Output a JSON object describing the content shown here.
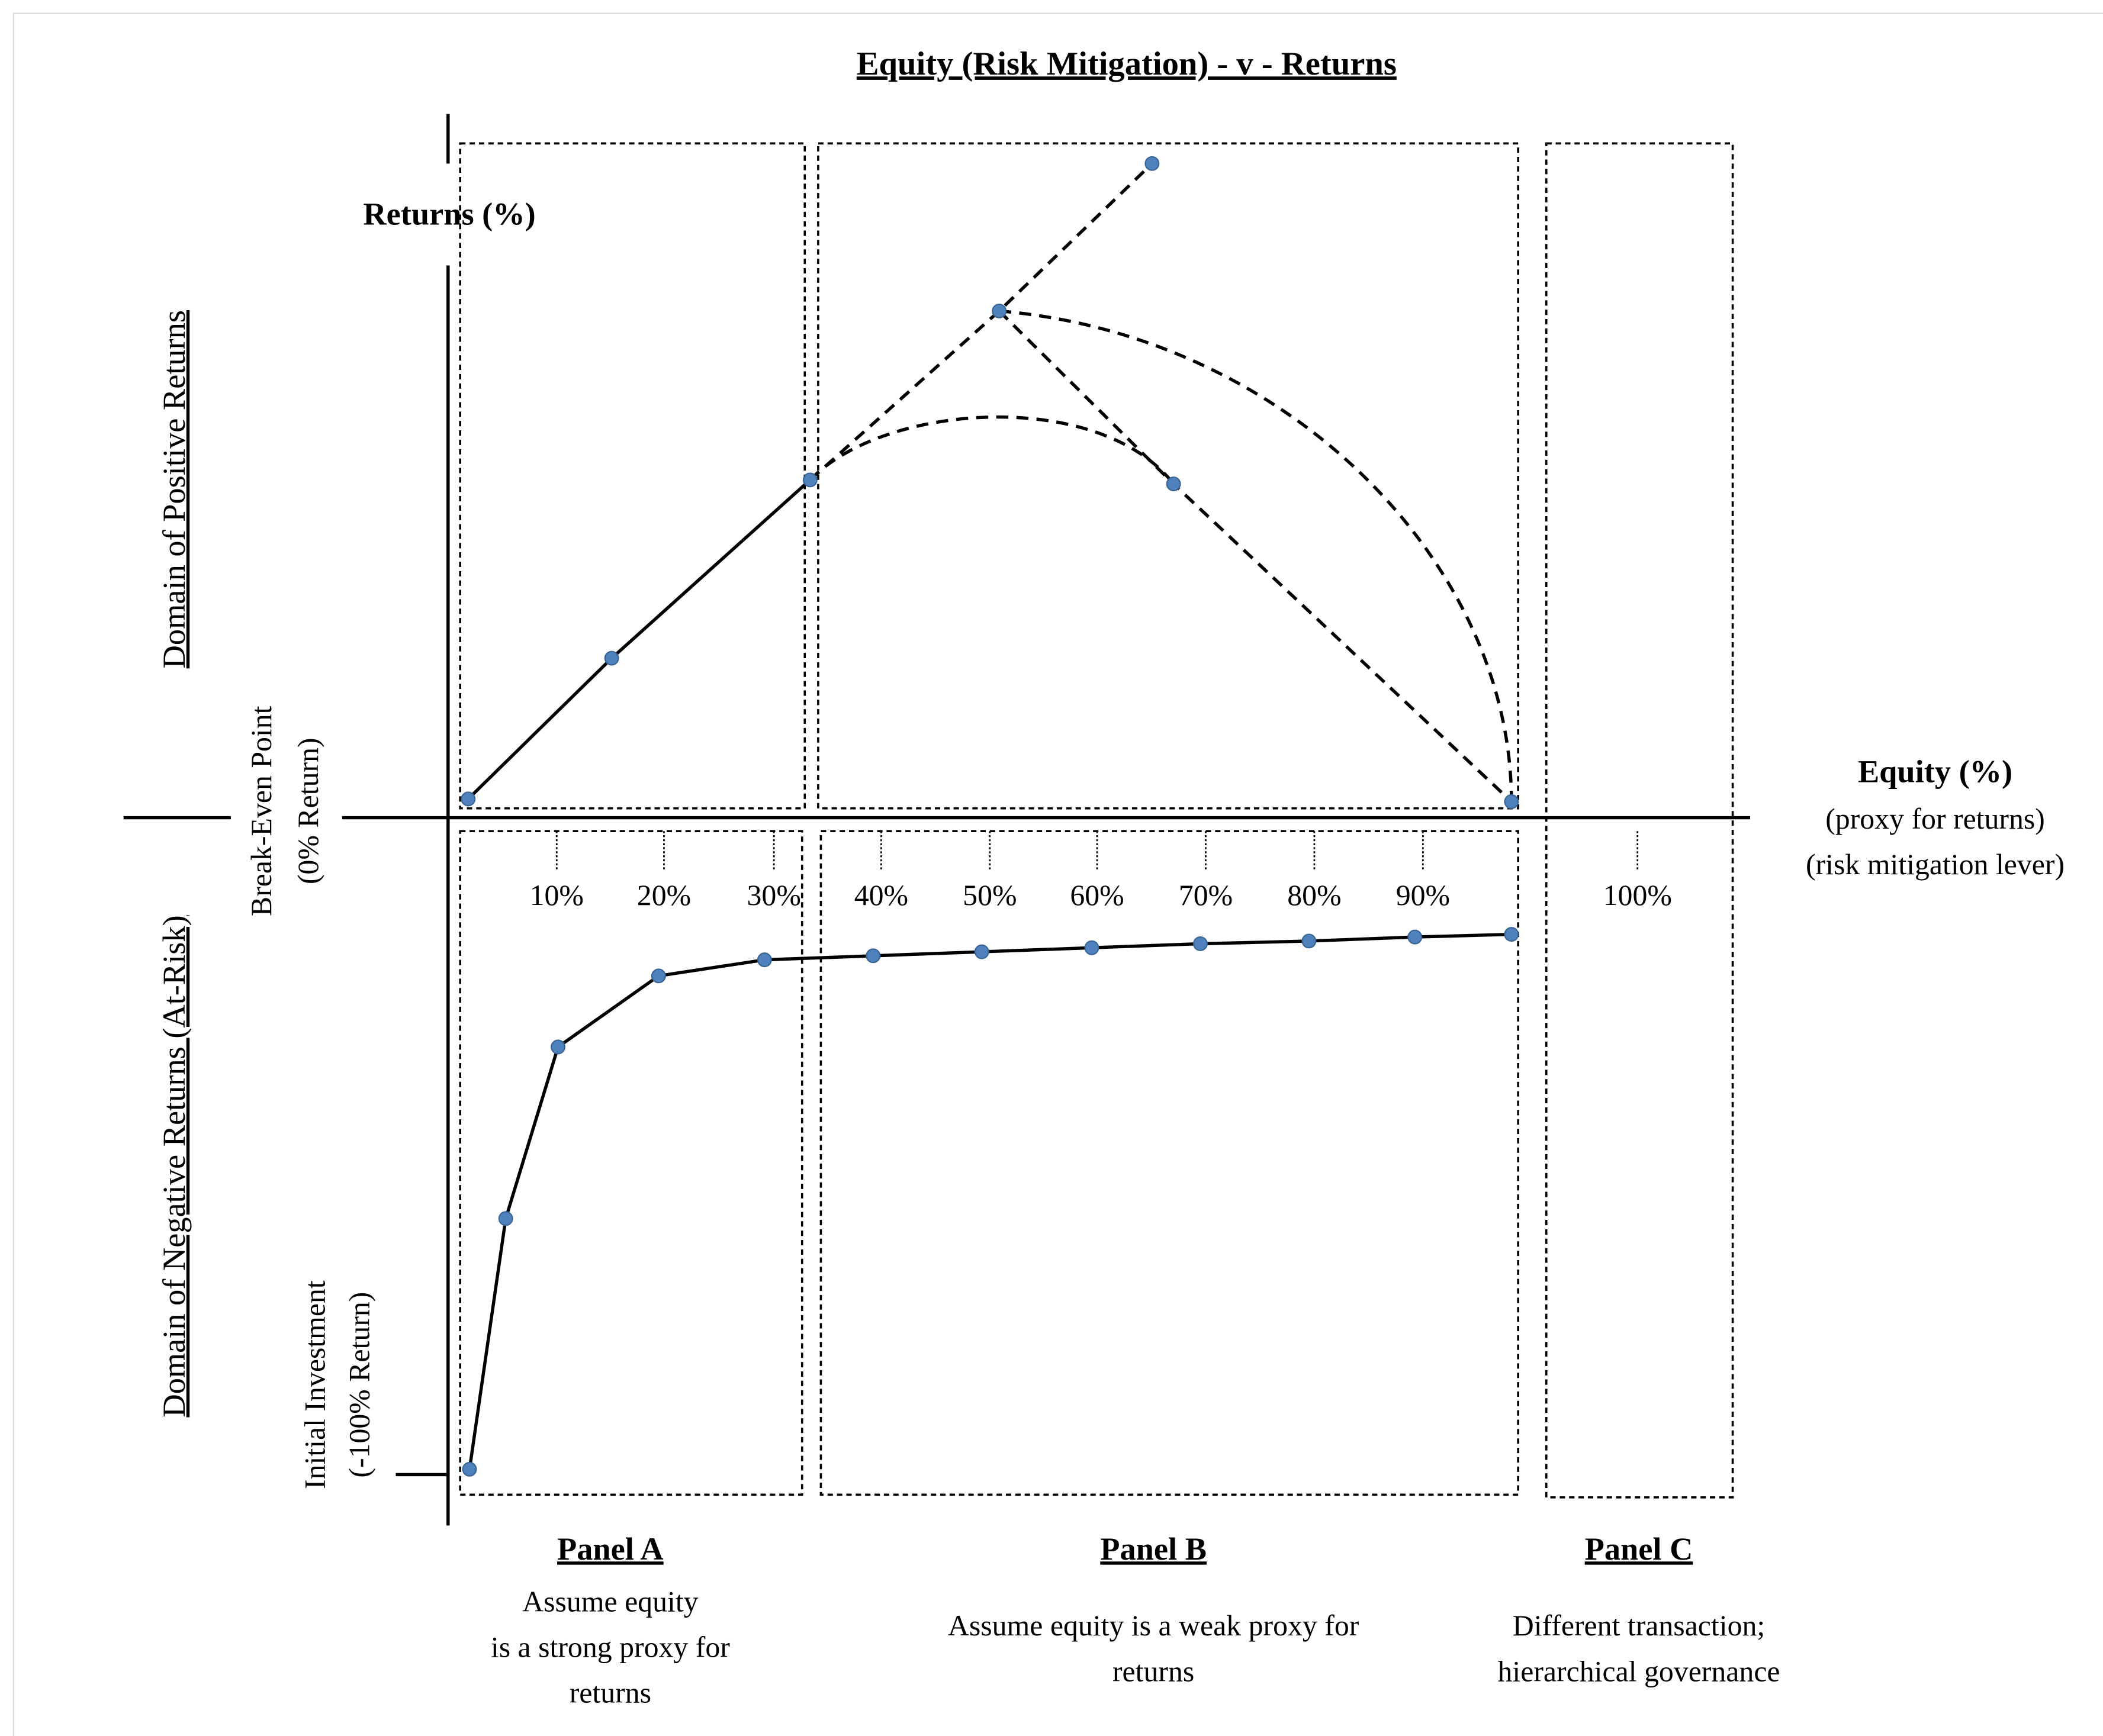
{
  "title": "Equity (Risk Mitigation) - v - Returns",
  "y_axis": {
    "label": "Returns (%)",
    "positive_domain": "Domain of Positive Returns",
    "negative_domain": "Domain of Negative Returns (At-Risk)",
    "break_even": [
      "Break-Even Point",
      "(0% Return)"
    ],
    "initial": [
      "Initial Investment",
      "(-100% Return)"
    ]
  },
  "x_axis": {
    "label": "Equity (%)",
    "sublabels": [
      "(proxy for returns)",
      "(risk mitigation lever)"
    ],
    "ticks": [
      "10%",
      "20%",
      "30%",
      "40%",
      "50%",
      "60%",
      "70%",
      "80%",
      "90%",
      "100%"
    ]
  },
  "panels": [
    {
      "name": "Panel A",
      "description": [
        "Assume equity",
        "is a strong proxy for",
        "returns"
      ]
    },
    {
      "name": "Panel B",
      "description": [
        "Assume equity is a weak proxy for",
        "returns"
      ]
    },
    {
      "name": "Panel C",
      "description": [
        "Different transaction;",
        "hierarchical governance"
      ]
    }
  ]
}
